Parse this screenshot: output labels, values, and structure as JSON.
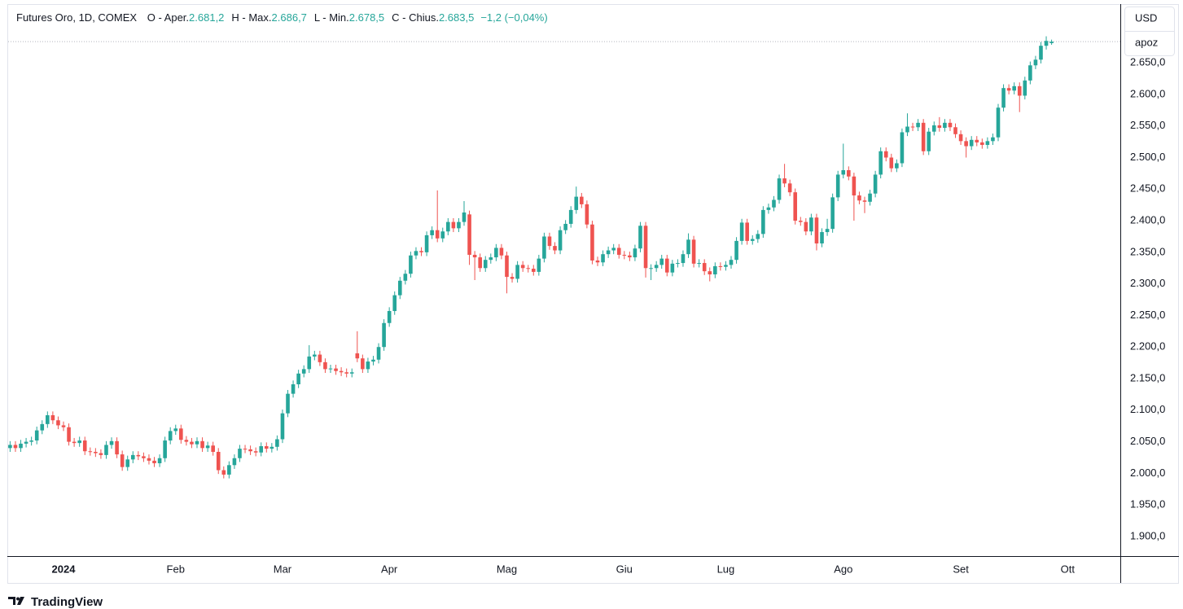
{
  "chart_data": {
    "type": "candlestick",
    "title": "Futures Oro, 1D, COMEX",
    "ohlc_legend": [
      {
        "label": "O - Aper.",
        "value": "2.681,2"
      },
      {
        "label": "H - Max.",
        "value": "2.686,7"
      },
      {
        "label": "L - Min.",
        "value": "2.678,5"
      },
      {
        "label": "C - Chius.",
        "value": "2.683,5"
      }
    ],
    "change": "−1,2 (−0,04%)",
    "currency_button": "USD",
    "scale_button": "apoz",
    "up_color": "#26a69a",
    "down_color": "#ef5350",
    "grid": false,
    "ylim": [
      1869,
      2743
    ],
    "yticks": [
      {
        "value": 1900,
        "label": "1.900,0"
      },
      {
        "value": 1950,
        "label": "1.950,0"
      },
      {
        "value": 2000,
        "label": "2.000,0"
      },
      {
        "value": 2050,
        "label": "2.050,0"
      },
      {
        "value": 2100,
        "label": "2.100,0"
      },
      {
        "value": 2150,
        "label": "2.150,0"
      },
      {
        "value": 2200,
        "label": "2.200,0"
      },
      {
        "value": 2250,
        "label": "2.250,0"
      },
      {
        "value": 2300,
        "label": "2.300,0"
      },
      {
        "value": 2350,
        "label": "2.350,0"
      },
      {
        "value": 2400,
        "label": "2.400,0"
      },
      {
        "value": 2450,
        "label": "2.450,0"
      },
      {
        "value": 2500,
        "label": "2.500,0"
      },
      {
        "value": 2550,
        "label": "2.550,0"
      },
      {
        "value": 2600,
        "label": "2.600,0"
      },
      {
        "value": 2650,
        "label": "2.650,0"
      }
    ],
    "categories": [
      null,
      null,
      null,
      null,
      null,
      null,
      null,
      null,
      null,
      null,
      "2024",
      null,
      null,
      null,
      null,
      null,
      null,
      null,
      null,
      null,
      null,
      null,
      null,
      null,
      null,
      null,
      null,
      null,
      null,
      null,
      null,
      "Feb",
      null,
      null,
      null,
      null,
      null,
      null,
      null,
      null,
      null,
      null,
      null,
      null,
      null,
      null,
      null,
      null,
      null,
      null,
      null,
      "Mar",
      null,
      null,
      null,
      null,
      null,
      null,
      null,
      null,
      null,
      null,
      null,
      null,
      null,
      null,
      null,
      null,
      null,
      null,
      null,
      "Apr",
      null,
      null,
      null,
      null,
      null,
      null,
      null,
      null,
      null,
      null,
      null,
      null,
      null,
      null,
      null,
      null,
      null,
      null,
      null,
      null,
      null,
      "Mag",
      null,
      null,
      null,
      null,
      null,
      null,
      null,
      null,
      null,
      null,
      null,
      null,
      null,
      null,
      null,
      null,
      null,
      null,
      null,
      null,
      null,
      "Giu",
      null,
      null,
      null,
      null,
      null,
      null,
      null,
      null,
      null,
      null,
      null,
      null,
      null,
      null,
      null,
      null,
      null,
      null,
      "Lug",
      null,
      null,
      null,
      null,
      null,
      null,
      null,
      null,
      null,
      null,
      null,
      null,
      null,
      null,
      null,
      null,
      null,
      null,
      null,
      null,
      null,
      "Ago",
      null,
      null,
      null,
      null,
      null,
      null,
      null,
      null,
      null,
      null,
      null,
      null,
      null,
      null,
      null,
      null,
      null,
      null,
      null,
      null,
      null,
      "Set",
      null,
      null,
      null,
      null,
      null,
      null,
      null,
      null,
      null,
      null,
      null,
      null,
      null,
      null,
      null,
      null,
      null,
      null,
      null,
      "Ott",
      null,
      null,
      null,
      null,
      null,
      null,
      null,
      null,
      null
    ],
    "open": [
      2040,
      2045,
      2040,
      2047,
      2050,
      2052,
      2068,
      2078,
      2092,
      2084,
      2076,
      2073,
      2050,
      2048,
      2052,
      2035,
      2034,
      2032,
      2029,
      2045,
      2051,
      2030,
      2010,
      2022,
      2029,
      2027,
      2024,
      2020,
      2016,
      2024,
      2052,
      2067,
      2071,
      2053,
      2050,
      2046,
      2051,
      2040,
      2044,
      2034,
      2005,
      1998,
      2013,
      2024,
      2039,
      2038,
      2035,
      2033,
      2043,
      2039,
      2042,
      2054,
      2095,
      2126,
      2141,
      2158,
      2165,
      2185,
      2188,
      2176,
      2165,
      2166,
      2162,
      2160,
      2158,
      2190,
      2182,
      2165,
      2177,
      2180,
      2200,
      2238,
      2257,
      2282,
      2305,
      2316,
      2345,
      2352,
      2350,
      2377,
      2385,
      2372,
      2383,
      2398,
      2388,
      2398,
      2410,
      2346,
      2342,
      2325,
      2338,
      2342,
      2357,
      2345,
      2311,
      2308,
      2330,
      2325,
      2324,
      2319,
      2340,
      2375,
      2360,
      2353,
      2385,
      2395,
      2417,
      2438,
      2426,
      2394,
      2337,
      2334,
      2347,
      2353,
      2357,
      2346,
      2345,
      2342,
      2356,
      2392,
      2325,
      2325,
      2330,
      2340,
      2318,
      2332,
      2333,
      2347,
      2370,
      2332,
      2333,
      2320,
      2315,
      2328,
      2327,
      2330,
      2338,
      2368,
      2397,
      2368,
      2371,
      2379,
      2417,
      2421,
      2433,
      2467,
      2459,
      2445,
      2400,
      2398,
      2383,
      2405,
      2364,
      2382,
      2387,
      2437,
      2473,
      2480,
      2470,
      2440,
      2432,
      2430,
      2443,
      2473,
      2510,
      2500,
      2483,
      2491,
      2540,
      2549,
      2548,
      2555,
      2510,
      2541,
      2551,
      2547,
      2555,
      2548,
      2537,
      2526,
      2518,
      2528,
      2524,
      2520,
      2526,
      2532,
      2579,
      2610,
      2606,
      2613,
      2598,
      2622,
      2646,
      2655,
      2677,
      2681.2,
      null,
      null,
      null,
      null,
      null,
      null,
      null,
      null,
      null,
      null,
      null,
      null
    ],
    "high": [
      2051,
      2051,
      2053,
      2056,
      2058,
      2074,
      2084,
      2098,
      2098,
      2090,
      2082,
      2079,
      2056,
      2058,
      2058,
      2041,
      2040,
      2038,
      2051,
      2057,
      2057,
      2036,
      2028,
      2035,
      2035,
      2033,
      2030,
      2026,
      2030,
      2058,
      2073,
      2077,
      2077,
      2059,
      2056,
      2057,
      2057,
      2050,
      2050,
      2040,
      2011,
      2019,
      2030,
      2045,
      2045,
      2044,
      2041,
      2049,
      2049,
      2048,
      2060,
      2101,
      2132,
      2147,
      2164,
      2171,
      2203,
      2194,
      2194,
      2182,
      2172,
      2172,
      2168,
      2166,
      2166,
      2225,
      2188,
      2183,
      2186,
      2206,
      2244,
      2263,
      2288,
      2311,
      2322,
      2351,
      2358,
      2358,
      2383,
      2391,
      2448,
      2389,
      2404,
      2404,
      2404,
      2431,
      2416,
      2352,
      2348,
      2344,
      2348,
      2363,
      2363,
      2351,
      2317,
      2336,
      2336,
      2330,
      2330,
      2346,
      2381,
      2381,
      2366,
      2391,
      2401,
      2423,
      2454,
      2444,
      2432,
      2400,
      2343,
      2353,
      2359,
      2363,
      2363,
      2352,
      2351,
      2362,
      2398,
      2398,
      2331,
      2336,
      2346,
      2346,
      2338,
      2339,
      2353,
      2380,
      2376,
      2339,
      2339,
      2326,
      2334,
      2334,
      2336,
      2344,
      2374,
      2403,
      2403,
      2377,
      2385,
      2423,
      2427,
      2439,
      2473,
      2490,
      2465,
      2451,
      2406,
      2404,
      2411,
      2411,
      2388,
      2403,
      2443,
      2479,
      2522,
      2486,
      2476,
      2446,
      2438,
      2449,
      2479,
      2516,
      2516,
      2506,
      2497,
      2546,
      2570,
      2555,
      2561,
      2561,
      2547,
      2557,
      2564,
      2561,
      2561,
      2554,
      2543,
      2532,
      2534,
      2534,
      2530,
      2532,
      2538,
      2585,
      2616,
      2616,
      2619,
      2619,
      2628,
      2652,
      2661,
      2683,
      2692,
      2686.7,
      null,
      null,
      null,
      null,
      null,
      null,
      null,
      null,
      null,
      null,
      null,
      null
    ],
    "low": [
      2034,
      2034,
      2034,
      2041,
      2044,
      2046,
      2062,
      2072,
      2078,
      2070,
      2067,
      2044,
      2042,
      2042,
      2029,
      2028,
      2026,
      2023,
      2023,
      2039,
      2024,
      2004,
      2004,
      2016,
      2021,
      2018,
      2014,
      2010,
      2010,
      2018,
      2046,
      2061,
      2047,
      2044,
      2040,
      2040,
      2034,
      2034,
      2028,
      1999,
      1992,
      1992,
      2007,
      2018,
      2032,
      2029,
      2027,
      2027,
      2033,
      2033,
      2036,
      2048,
      2089,
      2120,
      2135,
      2152,
      2159,
      2179,
      2170,
      2159,
      2159,
      2156,
      2154,
      2152,
      2152,
      2176,
      2159,
      2159,
      2171,
      2174,
      2194,
      2232,
      2251,
      2276,
      2299,
      2310,
      2339,
      2344,
      2344,
      2371,
      2366,
      2366,
      2377,
      2382,
      2382,
      2392,
      2330,
      2306,
      2319,
      2319,
      2332,
      2336,
      2339,
      2285,
      2302,
      2302,
      2319,
      2318,
      2313,
      2313,
      2334,
      2354,
      2347,
      2347,
      2379,
      2389,
      2411,
      2420,
      2388,
      2331,
      2328,
      2328,
      2341,
      2347,
      2340,
      2339,
      2336,
      2336,
      2350,
      2310,
      2306,
      2319,
      2324,
      2312,
      2312,
      2326,
      2327,
      2341,
      2326,
      2326,
      2314,
      2304,
      2309,
      2321,
      2321,
      2324,
      2332,
      2362,
      2362,
      2362,
      2365,
      2373,
      2411,
      2415,
      2427,
      2453,
      2439,
      2394,
      2392,
      2377,
      2377,
      2353,
      2358,
      2376,
      2381,
      2431,
      2467,
      2464,
      2400,
      2426,
      2412,
      2424,
      2437,
      2467,
      2494,
      2477,
      2477,
      2485,
      2534,
      2542,
      2542,
      2504,
      2504,
      2535,
      2541,
      2541,
      2542,
      2531,
      2520,
      2500,
      2512,
      2518,
      2514,
      2514,
      2520,
      2526,
      2573,
      2600,
      2600,
      2572,
      2592,
      2616,
      2640,
      2649,
      2671,
      2678.5,
      null,
      null,
      null,
      null,
      null,
      null,
      null,
      null,
      null,
      null,
      null,
      null
    ],
    "close": [
      2045,
      2040,
      2047,
      2050,
      2052,
      2068,
      2078,
      2092,
      2084,
      2076,
      2073,
      2050,
      2048,
      2052,
      2035,
      2034,
      2032,
      2029,
      2045,
      2051,
      2030,
      2010,
      2022,
      2029,
      2027,
      2024,
      2020,
      2016,
      2024,
      2052,
      2067,
      2071,
      2053,
      2050,
      2046,
      2051,
      2040,
      2044,
      2034,
      2005,
      1998,
      2013,
      2024,
      2039,
      2038,
      2035,
      2033,
      2043,
      2039,
      2042,
      2054,
      2095,
      2126,
      2141,
      2158,
      2165,
      2185,
      2188,
      2176,
      2165,
      2166,
      2162,
      2160,
      2158,
      2160,
      2182,
      2165,
      2177,
      2180,
      2200,
      2238,
      2257,
      2282,
      2305,
      2316,
      2345,
      2352,
      2350,
      2377,
      2385,
      2372,
      2383,
      2398,
      2388,
      2398,
      2413,
      2346,
      2342,
      2325,
      2338,
      2342,
      2357,
      2345,
      2311,
      2308,
      2330,
      2325,
      2324,
      2319,
      2340,
      2375,
      2360,
      2353,
      2385,
      2395,
      2417,
      2438,
      2426,
      2394,
      2337,
      2334,
      2347,
      2353,
      2357,
      2346,
      2345,
      2342,
      2356,
      2392,
      2325,
      2325,
      2330,
      2340,
      2318,
      2332,
      2333,
      2347,
      2370,
      2332,
      2333,
      2320,
      2315,
      2328,
      2327,
      2330,
      2338,
      2368,
      2397,
      2368,
      2371,
      2379,
      2417,
      2421,
      2433,
      2467,
      2459,
      2445,
      2400,
      2398,
      2383,
      2405,
      2364,
      2382,
      2387,
      2437,
      2473,
      2480,
      2470,
      2440,
      2432,
      2430,
      2443,
      2473,
      2510,
      2500,
      2483,
      2491,
      2540,
      2549,
      2548,
      2555,
      2510,
      2541,
      2551,
      2547,
      2555,
      2548,
      2537,
      2526,
      2518,
      2528,
      2524,
      2520,
      2526,
      2532,
      2579,
      2610,
      2606,
      2613,
      2598,
      2622,
      2646,
      2655,
      2677,
      2684.7,
      2683.5,
      null,
      null,
      null,
      null,
      null,
      null,
      null,
      null,
      null,
      null,
      null,
      null
    ]
  },
  "branding": "TradingView"
}
